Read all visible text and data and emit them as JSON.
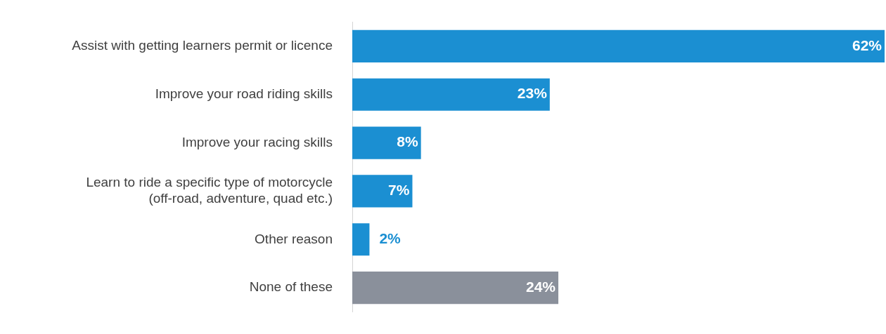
{
  "chart_data": {
    "type": "bar",
    "orientation": "horizontal",
    "categories": [
      "Assist with getting learners permit or licence",
      "Improve your road riding skills",
      "Improve your racing skills",
      "Learn to ride a specific type of motorcycle\n(off-road, adventure, quad etc.)",
      "Other reason",
      "None of these"
    ],
    "values": [
      62,
      23,
      8,
      7,
      2,
      24
    ],
    "colors": [
      "#1b8fd2",
      "#1b8fd2",
      "#1b8fd2",
      "#1b8fd2",
      "#1b8fd2",
      "#8a909b"
    ],
    "value_labels": [
      "62%",
      "23%",
      "8%",
      "7%",
      "2%",
      "24%"
    ]
  }
}
